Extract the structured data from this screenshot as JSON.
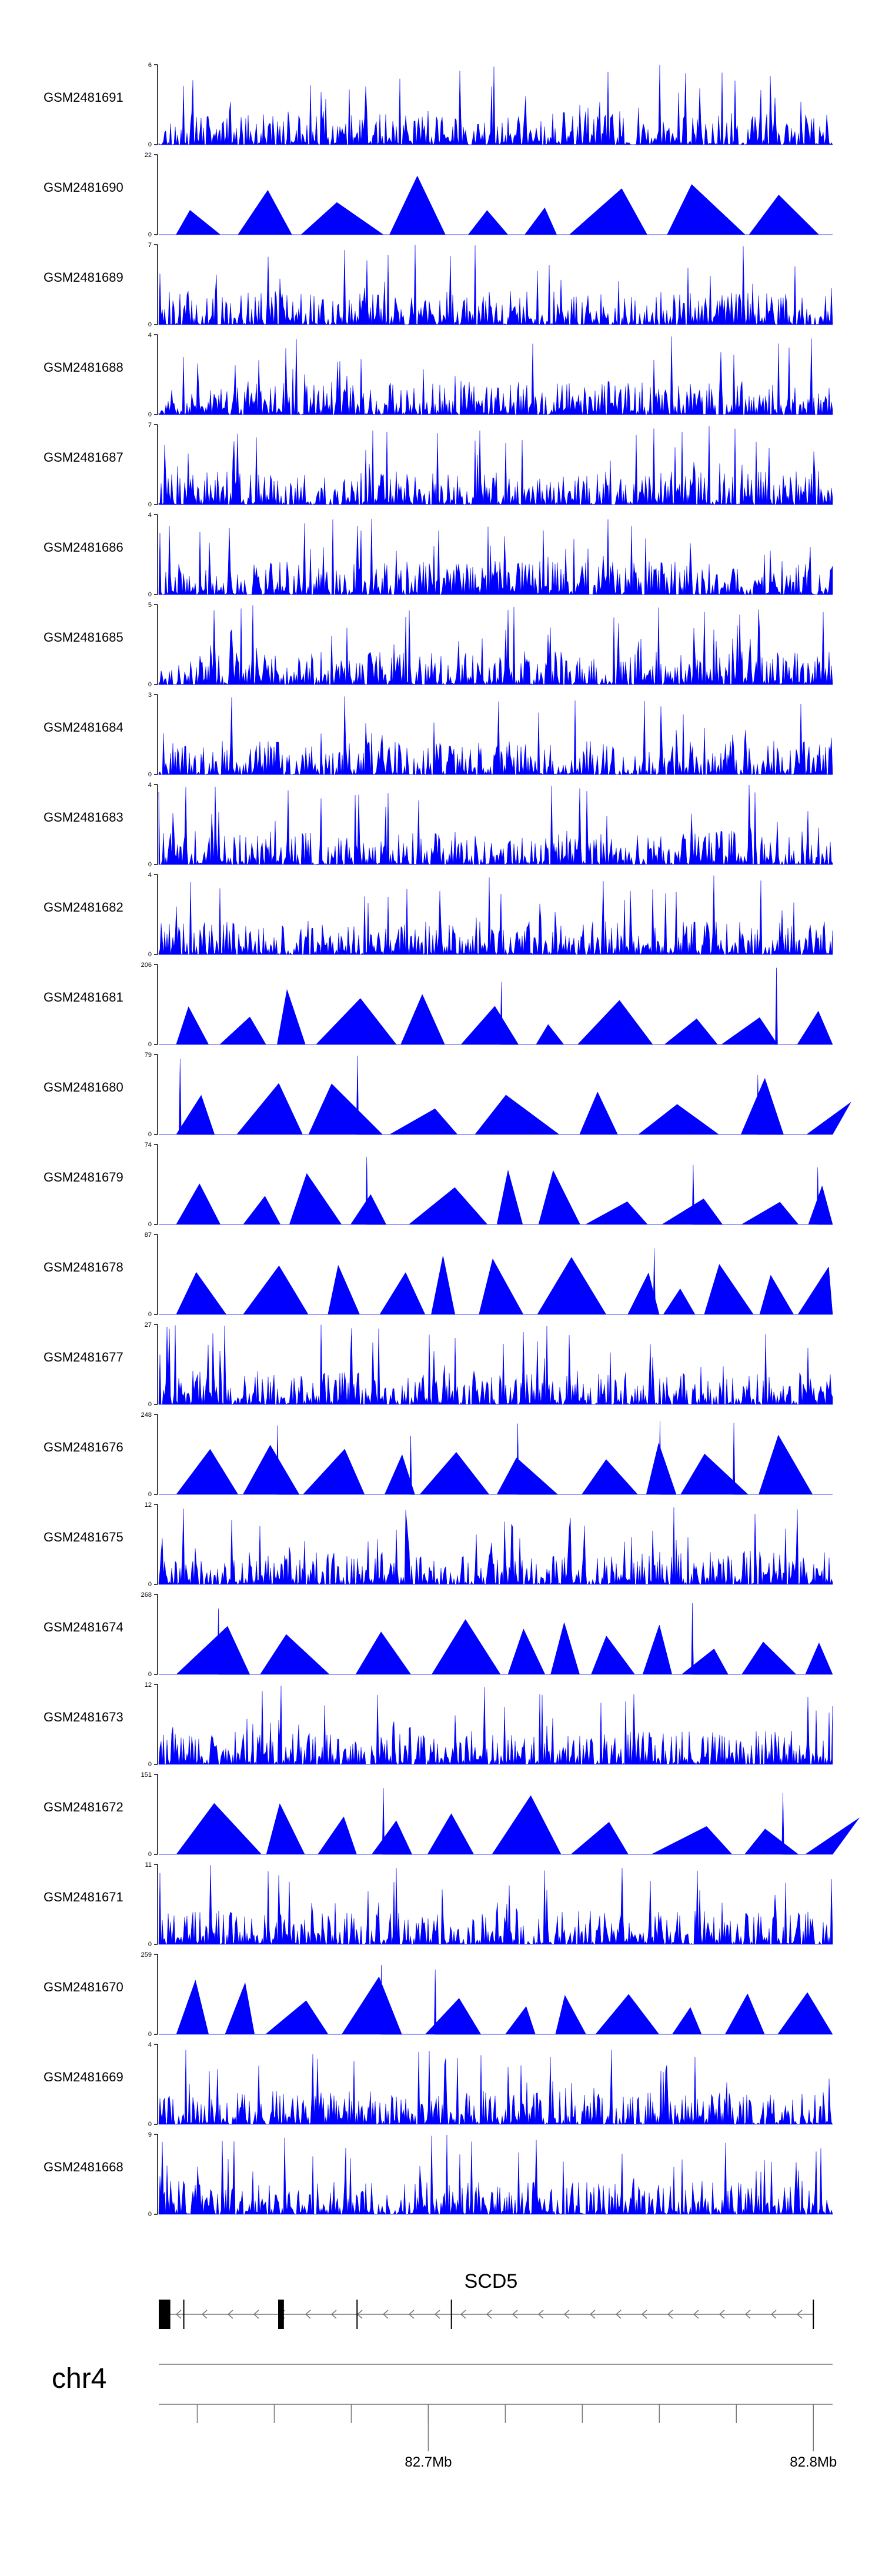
{
  "colors": {
    "signal": "#0000ff",
    "axis": "#000000",
    "gene": "#000000",
    "intron": "#777777",
    "chrom_line": "#777777"
  },
  "chart_data": {
    "type": "area",
    "xlim": [
      82.63,
      82.805
    ],
    "tracks": [
      {
        "sample": "GSM2481691",
        "ymax": "6",
        "style": "dense",
        "seed": 11
      },
      {
        "sample": "GSM2481690",
        "ymax": "22",
        "style": "sparse",
        "seed": 12
      },
      {
        "sample": "GSM2481689",
        "ymax": "7",
        "style": "dense",
        "seed": 13
      },
      {
        "sample": "GSM2481688",
        "ymax": "4",
        "style": "dense",
        "seed": 14
      },
      {
        "sample": "GSM2481687",
        "ymax": "7",
        "style": "dense",
        "seed": 15
      },
      {
        "sample": "GSM2481686",
        "ymax": "4",
        "style": "dense",
        "seed": 16
      },
      {
        "sample": "GSM2481685",
        "ymax": "5",
        "style": "dense",
        "seed": 17
      },
      {
        "sample": "GSM2481684",
        "ymax": "3",
        "style": "dense",
        "seed": 18
      },
      {
        "sample": "GSM2481683",
        "ymax": "4",
        "style": "dense",
        "seed": 19
      },
      {
        "sample": "GSM2481682",
        "ymax": "4",
        "style": "dense",
        "seed": 20
      },
      {
        "sample": "GSM2481681",
        "ymax": "206",
        "style": "sparse",
        "seed": 21
      },
      {
        "sample": "GSM2481680",
        "ymax": "79",
        "style": "sparse",
        "seed": 22
      },
      {
        "sample": "GSM2481679",
        "ymax": "74",
        "style": "sparse",
        "seed": 23
      },
      {
        "sample": "GSM2481678",
        "ymax": "87",
        "style": "sparse",
        "seed": 24
      },
      {
        "sample": "GSM2481677",
        "ymax": "27",
        "style": "dense",
        "seed": 25
      },
      {
        "sample": "GSM2481676",
        "ymax": "248",
        "style": "sparse",
        "seed": 26
      },
      {
        "sample": "GSM2481675",
        "ymax": "12",
        "style": "dense",
        "seed": 27
      },
      {
        "sample": "GSM2481674",
        "ymax": "268",
        "style": "sparse",
        "seed": 28
      },
      {
        "sample": "GSM2481673",
        "ymax": "12",
        "style": "dense",
        "seed": 29
      },
      {
        "sample": "GSM2481672",
        "ymax": "151",
        "style": "sparse",
        "seed": 30
      },
      {
        "sample": "GSM2481671",
        "ymax": "11",
        "style": "dense",
        "seed": 31
      },
      {
        "sample": "GSM2481670",
        "ymax": "259",
        "style": "sparse",
        "seed": 32
      },
      {
        "sample": "GSM2481669",
        "ymax": "4",
        "style": "dense",
        "seed": 33
      },
      {
        "sample": "GSM2481668",
        "ymax": "9",
        "style": "dense",
        "seed": 34
      }
    ],
    "gene": {
      "name": "SCD5",
      "start": 82.63,
      "end": 82.8,
      "strand": "-",
      "exons": [
        [
          82.63,
          82.633
        ],
        [
          82.661,
          82.6625
        ]
      ],
      "exon_ticks": [
        82.6365,
        82.6815,
        82.706,
        82.8
      ]
    },
    "axis": {
      "chromosome": "chr4",
      "minor_ticks": [
        82.64,
        82.66,
        82.68,
        82.7,
        82.72,
        82.74,
        82.76,
        82.78,
        82.8
      ],
      "labels": [
        {
          "value": 82.7,
          "text": "82.7Mb"
        },
        {
          "value": 82.8,
          "text": "82.8Mb"
        }
      ]
    }
  }
}
